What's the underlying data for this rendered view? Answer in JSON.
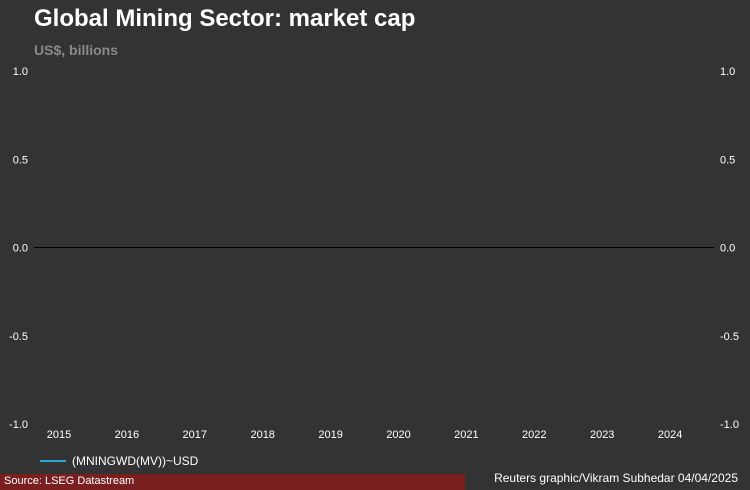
{
  "header": {
    "title": "Global Mining Sector: market cap",
    "subtitle": "US$, billions"
  },
  "footer": {
    "source": "Source: LSEG Datastream",
    "credit": "Reuters graphic/Vikram Subhedar 04/04/2025"
  },
  "colors": {
    "background": "#333333",
    "series": "#2aa8d8",
    "source_bar": "#7a1f1f",
    "zero_line": "#000000"
  },
  "chart_data": {
    "type": "line",
    "title": "Global Mining Sector: market cap",
    "subtitle": "US$, billions",
    "xlabel": "",
    "ylabel": "",
    "x_ticks": [
      "2015",
      "2016",
      "2017",
      "2018",
      "2019",
      "2020",
      "2021",
      "2022",
      "2023",
      "2024"
    ],
    "y_ticks_left": [
      "1.0",
      "0.5",
      "0.0",
      "-0.5",
      "-1.0"
    ],
    "y_ticks_right": [
      "1.0",
      "0.5",
      "0.0",
      "-0.5",
      "-1.0"
    ],
    "ylim": [
      -1.0,
      1.0
    ],
    "grid": false,
    "legend_position": "bottom-left",
    "series": [
      {
        "name": "(MNINGWD(MV))~USD",
        "values": []
      }
    ]
  }
}
